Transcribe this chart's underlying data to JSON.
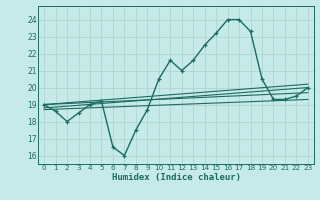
{
  "xlabel": "Humidex (Indice chaleur)",
  "xlim": [
    -0.5,
    23.5
  ],
  "ylim": [
    15.5,
    24.8
  ],
  "yticks": [
    16,
    17,
    18,
    19,
    20,
    21,
    22,
    23,
    24
  ],
  "xticks": [
    0,
    1,
    2,
    3,
    4,
    5,
    6,
    7,
    8,
    9,
    10,
    11,
    12,
    13,
    14,
    15,
    16,
    17,
    18,
    19,
    20,
    21,
    22,
    23
  ],
  "bg_color": "#c5eae7",
  "grid_color": "#b0d5d0",
  "line_color": "#1c6b63",
  "main_line_x": [
    0,
    1,
    2,
    3,
    4,
    5,
    6,
    7,
    8,
    9,
    10,
    11,
    12,
    13,
    14,
    15,
    16,
    17,
    18,
    19,
    20,
    21,
    22,
    23
  ],
  "main_line_y": [
    19.0,
    18.6,
    18.0,
    18.5,
    19.0,
    19.2,
    16.5,
    16.0,
    17.5,
    18.7,
    20.5,
    21.6,
    21.0,
    21.6,
    22.5,
    23.2,
    24.0,
    24.0,
    23.3,
    20.5,
    19.3,
    19.3,
    19.5,
    20.0
  ],
  "straight_lines": [
    {
      "x0": 0,
      "y0": 19.0,
      "x1": 23,
      "y1": 20.2
    },
    {
      "x0": 0,
      "y0": 19.0,
      "x1": 23,
      "y1": 19.7
    },
    {
      "x0": 0,
      "y0": 18.8,
      "x1": 23,
      "y1": 20.0
    },
    {
      "x0": 0,
      "y0": 18.7,
      "x1": 23,
      "y1": 19.3
    }
  ]
}
